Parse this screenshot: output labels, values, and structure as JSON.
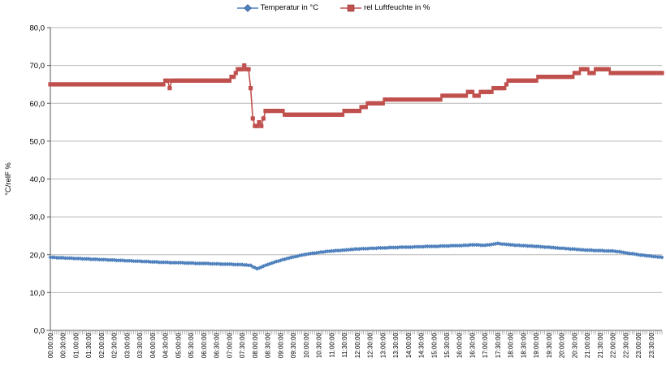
{
  "chart_data": {
    "type": "line",
    "title": "",
    "y_axis_title": "°C/relF %",
    "ylim": [
      0,
      80
    ],
    "y_tick_step": 10,
    "y_tick_labels": [
      "0,0",
      "10,0",
      "20,0",
      "30,0",
      "40,0",
      "50,0",
      "60,0",
      "70,0",
      "80,0"
    ],
    "x_minor_interval_minutes": 5,
    "x_label_interval_minutes": 30,
    "grid": "horizontal-major",
    "legend_position": "top-center",
    "x_tick_labels": [
      "00:00:00",
      "00:30:00",
      "01:00:00",
      "01:30:00",
      "02:00:00",
      "02:30:00",
      "03:00:00",
      "03:30:00",
      "04:00:00",
      "04:30:00",
      "05:00:00",
      "05:30:00",
      "06:00:00",
      "06:30:00",
      "07:00:00",
      "07:30:00",
      "08:00:00",
      "08:30:00",
      "09:00:00",
      "09:30:00",
      "10:00:00",
      "10:30:00",
      "11:00:00",
      "11:30:00",
      "12:00:00",
      "12:30:00",
      "13:00:00",
      "13:30:00",
      "14:00:00",
      "14:30:00",
      "15:00:00",
      "15:30:00",
      "16:00:00",
      "16:30:00",
      "17:00:00",
      "17:30:00",
      "18:00:00",
      "18:30:00",
      "19:00:00",
      "19:30:00",
      "20:00:00",
      "20:30:00",
      "21:00:00",
      "21:30:00",
      "22:00:00",
      "22:30:00",
      "23:00:00",
      "23:30:00"
    ],
    "series": [
      {
        "name": "Temperatur in °C",
        "color": "#4F81BD",
        "marker": "diamond",
        "values": [
          19.3,
          19.3,
          19.3,
          19.2,
          19.2,
          19.2,
          19.2,
          19.1,
          19.1,
          19.1,
          19.1,
          19.0,
          19.0,
          19.0,
          19.0,
          18.9,
          18.9,
          18.9,
          18.9,
          18.8,
          18.8,
          18.8,
          18.8,
          18.7,
          18.7,
          18.7,
          18.7,
          18.6,
          18.6,
          18.6,
          18.6,
          18.5,
          18.5,
          18.5,
          18.5,
          18.4,
          18.4,
          18.4,
          18.4,
          18.3,
          18.3,
          18.3,
          18.3,
          18.2,
          18.2,
          18.2,
          18.2,
          18.1,
          18.1,
          18.1,
          18.1,
          18.0,
          18.0,
          18.0,
          18.0,
          18.0,
          17.9,
          17.9,
          17.9,
          17.9,
          17.9,
          17.9,
          17.9,
          17.8,
          17.8,
          17.8,
          17.8,
          17.8,
          17.7,
          17.7,
          17.7,
          17.7,
          17.7,
          17.7,
          17.7,
          17.6,
          17.6,
          17.6,
          17.6,
          17.6,
          17.5,
          17.5,
          17.5,
          17.5,
          17.5,
          17.5,
          17.4,
          17.4,
          17.4,
          17.4,
          17.4,
          17.3,
          17.3,
          17.2,
          17.2,
          16.8,
          16.6,
          16.3,
          16.5,
          16.7,
          17.0,
          17.2,
          17.4,
          17.6,
          17.8,
          18.0,
          18.2,
          18.3,
          18.5,
          18.7,
          18.8,
          19.0,
          19.1,
          19.3,
          19.4,
          19.5,
          19.6,
          19.8,
          19.9,
          20.0,
          20.1,
          20.2,
          20.3,
          20.4,
          20.4,
          20.5,
          20.6,
          20.7,
          20.7,
          20.8,
          20.9,
          20.9,
          21.0,
          21.0,
          21.1,
          21.1,
          21.1,
          21.2,
          21.2,
          21.3,
          21.3,
          21.4,
          21.4,
          21.5,
          21.5,
          21.5,
          21.6,
          21.6,
          21.6,
          21.6,
          21.7,
          21.7,
          21.7,
          21.7,
          21.8,
          21.8,
          21.8,
          21.8,
          21.8,
          21.9,
          21.9,
          21.9,
          21.9,
          21.9,
          22.0,
          22.0,
          22.0,
          22.0,
          22.0,
          22.0,
          22.0,
          22.1,
          22.1,
          22.1,
          22.1,
          22.1,
          22.2,
          22.2,
          22.2,
          22.2,
          22.2,
          22.2,
          22.2,
          22.3,
          22.3,
          22.3,
          22.3,
          22.3,
          22.4,
          22.4,
          22.4,
          22.4,
          22.4,
          22.4,
          22.5,
          22.5,
          22.5,
          22.6,
          22.6,
          22.6,
          22.6,
          22.6,
          22.5,
          22.5,
          22.5,
          22.6,
          22.6,
          22.7,
          22.8,
          22.9,
          23.0,
          22.9,
          22.8,
          22.8,
          22.7,
          22.7,
          22.6,
          22.6,
          22.5,
          22.5,
          22.5,
          22.4,
          22.4,
          22.4,
          22.3,
          22.3,
          22.3,
          22.2,
          22.2,
          22.2,
          22.1,
          22.1,
          22.0,
          22.0,
          22.0,
          21.9,
          21.9,
          21.8,
          21.8,
          21.7,
          21.7,
          21.7,
          21.6,
          21.6,
          21.5,
          21.5,
          21.5,
          21.4,
          21.4,
          21.3,
          21.3,
          21.2,
          21.2,
          21.2,
          21.2,
          21.1,
          21.1,
          21.1,
          21.1,
          21.1,
          21.0,
          21.0,
          21.0,
          21.0,
          21.0,
          20.9,
          20.8,
          20.8,
          20.7,
          20.6,
          20.5,
          20.4,
          20.3,
          20.3,
          20.2,
          20.1,
          20.0,
          19.9,
          19.9,
          19.8,
          19.7,
          19.7,
          19.6,
          19.5,
          19.5,
          19.4,
          19.4,
          19.3
        ]
      },
      {
        "name": "rel Luftfeuchte in %",
        "color": "#C0504D",
        "marker": "square",
        "values": [
          65,
          65,
          65,
          65,
          65,
          65,
          65,
          65,
          65,
          65,
          65,
          65,
          65,
          65,
          65,
          65,
          65,
          65,
          65,
          65,
          65,
          65,
          65,
          65,
          65,
          65,
          65,
          65,
          65,
          65,
          65,
          65,
          65,
          65,
          65,
          65,
          65,
          65,
          65,
          65,
          65,
          65,
          65,
          65,
          65,
          65,
          65,
          65,
          65,
          65,
          65,
          65,
          65,
          65,
          66,
          66,
          64,
          66,
          66,
          66,
          66,
          66,
          66,
          66,
          66,
          66,
          66,
          66,
          66,
          66,
          66,
          66,
          66,
          66,
          66,
          66,
          66,
          66,
          66,
          66,
          66,
          66,
          66,
          66,
          66,
          67,
          67,
          68,
          69,
          69,
          69,
          70,
          69,
          69,
          64,
          56,
          54,
          54,
          55,
          54,
          56,
          58,
          58,
          58,
          58,
          58,
          58,
          58,
          58,
          58,
          57,
          57,
          57,
          57,
          57,
          57,
          57,
          57,
          57,
          57,
          57,
          57,
          57,
          57,
          57,
          57,
          57,
          57,
          57,
          57,
          57,
          57,
          57,
          57,
          57,
          57,
          57,
          57,
          58,
          58,
          58,
          58,
          58,
          58,
          58,
          58,
          59,
          59,
          59,
          60,
          60,
          60,
          60,
          60,
          60,
          60,
          60,
          61,
          61,
          61,
          61,
          61,
          61,
          61,
          61,
          61,
          61,
          61,
          61,
          61,
          61,
          61,
          61,
          61,
          61,
          61,
          61,
          61,
          61,
          61,
          61,
          61,
          61,
          61,
          62,
          62,
          62,
          62,
          62,
          62,
          62,
          62,
          62,
          62,
          62,
          62,
          63,
          63,
          63,
          62,
          62,
          62,
          63,
          63,
          63,
          63,
          63,
          63,
          64,
          64,
          64,
          64,
          64,
          64,
          65,
          66,
          66,
          66,
          66,
          66,
          66,
          66,
          66,
          66,
          66,
          66,
          66,
          66,
          66,
          67,
          67,
          67,
          67,
          67,
          67,
          67,
          67,
          67,
          67,
          67,
          67,
          67,
          67,
          67,
          67,
          67,
          68,
          68,
          68,
          69,
          69,
          69,
          69,
          68,
          68,
          68,
          69,
          69,
          69,
          69,
          69,
          69,
          69,
          68,
          68,
          68,
          68,
          68,
          68,
          68,
          68,
          68,
          68,
          68,
          68,
          68,
          68,
          68,
          68,
          68,
          68,
          68,
          68,
          68,
          68,
          68,
          68,
          68
        ]
      }
    ]
  },
  "style": {
    "gridline_color": "#b8b8b8",
    "axis_color": "#595959",
    "tick_color": "#808080",
    "label_color": "#000000",
    "background": "#ffffff"
  }
}
